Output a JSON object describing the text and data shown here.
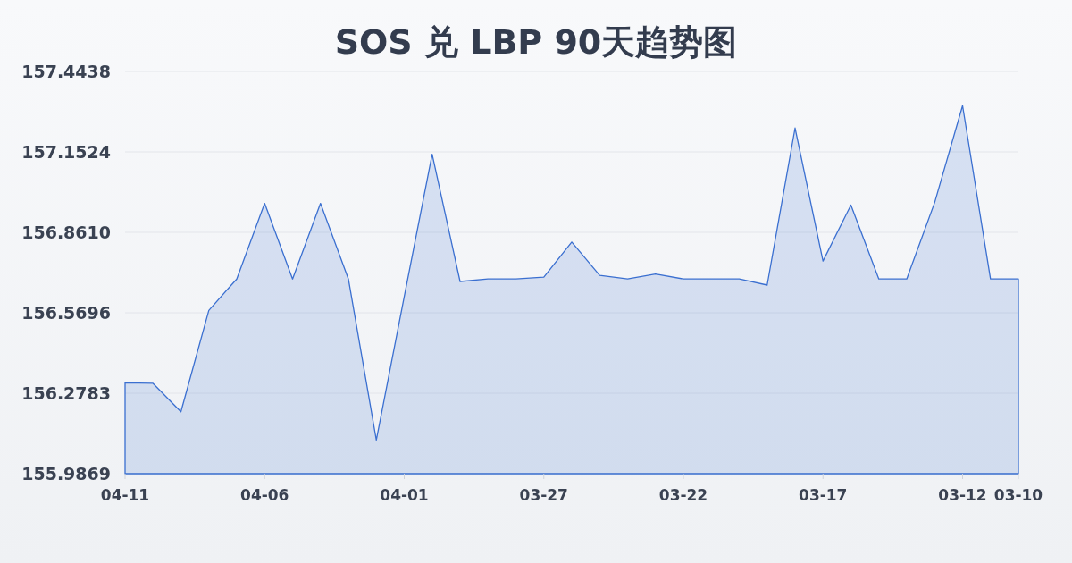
{
  "chart_data": {
    "type": "area",
    "title": "SOS 兑 LBP 90天趋势图",
    "categories": [
      "04-11",
      null,
      null,
      null,
      null,
      "04-06",
      null,
      null,
      null,
      null,
      "04-01",
      null,
      null,
      null,
      null,
      "03-27",
      null,
      null,
      null,
      null,
      "03-22",
      null,
      null,
      null,
      null,
      "03-17",
      null,
      null,
      null,
      null,
      "03-12",
      null,
      "03-10"
    ],
    "values": [
      156.316,
      156.314,
      156.211,
      156.578,
      156.692,
      156.966,
      156.692,
      156.966,
      156.692,
      156.109,
      156.628,
      157.144,
      156.683,
      156.692,
      156.692,
      156.699,
      156.826,
      156.705,
      156.692,
      156.71,
      156.692,
      156.692,
      156.692,
      156.67,
      157.239,
      156.757,
      156.96,
      156.692,
      156.692,
      156.969,
      157.32,
      156.692,
      156.692
    ],
    "color": "#3a6fd0",
    "ylim": [
      155.9869,
      157.4438
    ],
    "yticks": [
      155.9869,
      156.2783,
      156.5696,
      {
        "value": 156.861,
        "label": "156.8610"
      },
      157.1524,
      157.4438
    ],
    "grid": "y"
  }
}
